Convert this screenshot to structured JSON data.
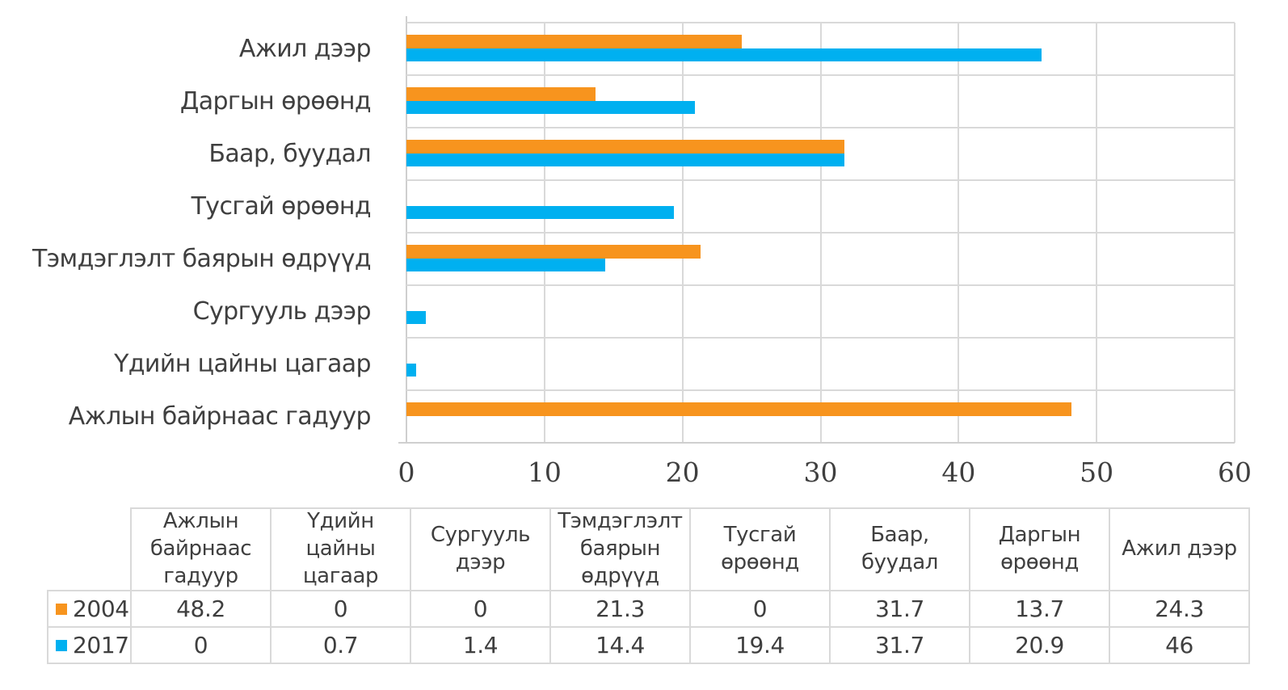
{
  "chart_data": {
    "type": "bar",
    "orientation": "horizontal",
    "title": "",
    "xlabel": "",
    "ylabel": "",
    "categories_top_to_bottom": [
      "Ажил дээр",
      "Даргын өрөөнд",
      "Баар, буудал",
      "Тусгай өрөөнд",
      "Тэмдэглэлт баярын өдрүүд",
      "Сургууль дээр",
      "Үдийн цайны цагаар",
      "Ажлын байрнаас гадуур"
    ],
    "series": [
      {
        "name": "2004",
        "color": "#F7941E",
        "values": [
          24.3,
          13.7,
          31.7,
          0,
          21.3,
          0,
          0,
          48.2
        ]
      },
      {
        "name": "2017",
        "color": "#00B0F0",
        "values": [
          46,
          20.9,
          31.7,
          19.4,
          14.4,
          1.4,
          0.7,
          0
        ]
      }
    ],
    "x_axis": {
      "min": 0,
      "max": 60,
      "tick_step": 10,
      "tick_labels": [
        "0",
        "10",
        "20",
        "30",
        "40",
        "50",
        "60"
      ]
    },
    "grid": true,
    "legend_position": "table-below-chart"
  },
  "table": {
    "column_headers": [
      "Ажлын байрнаас гадуур",
      "Үдийн цайны цагаар",
      "Сургууль дээр",
      "Тэмдэглэлт баярын өдрүүд",
      "Тусгай өрөөнд",
      "Баар, буудал",
      "Даргын өрөөнд",
      "Ажил дээр"
    ],
    "rows": [
      {
        "label": "2004",
        "swatch_color": "#F7941E",
        "values": [
          "48.2",
          "0",
          "0",
          "21.3",
          "0",
          "31.7",
          "13.7",
          "24.3"
        ]
      },
      {
        "label": "2017",
        "swatch_color": "#00B0F0",
        "values": [
          "0",
          "0.7",
          "1.4",
          "14.4",
          "19.4",
          "31.7",
          "20.9",
          "46"
        ]
      }
    ]
  },
  "colors": {
    "series_2004": "#F7941E",
    "series_2017": "#00B0F0",
    "gridline": "#D9D9D9",
    "text": "#3F3F3F"
  }
}
